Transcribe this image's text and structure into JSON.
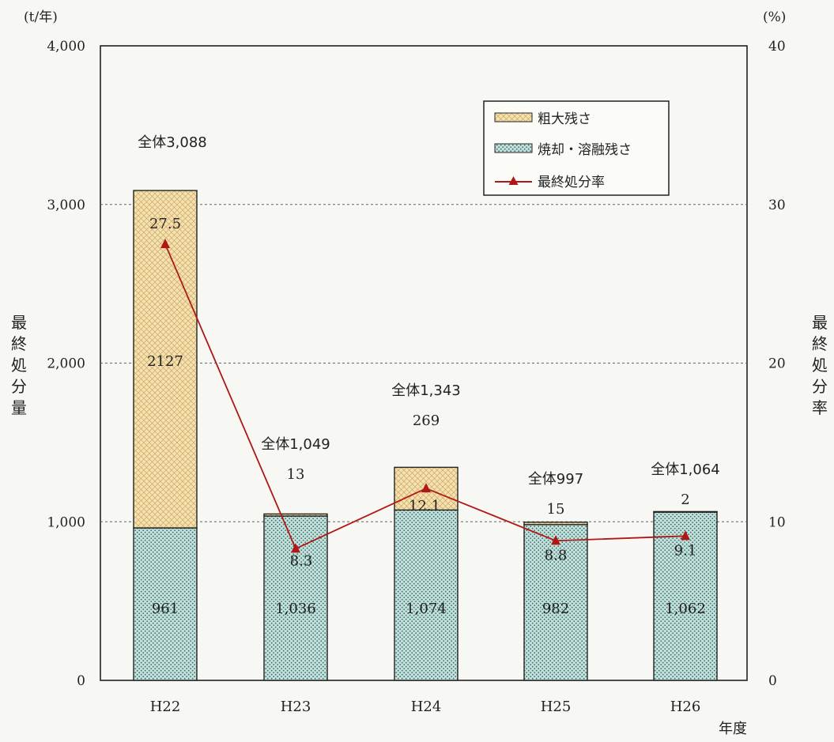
{
  "chart_data": {
    "type": "bar",
    "categories": [
      "H22",
      "H23",
      "H24",
      "H25",
      "H26"
    ],
    "series": [
      {
        "name": "焼却・溶融残さ",
        "type": "bar",
        "stack": true,
        "values": [
          961,
          1036,
          1074,
          982,
          1062
        ],
        "value_labels": [
          "961",
          "1,036",
          "1,074",
          "982",
          "1,062"
        ],
        "color": "#bfe0dc"
      },
      {
        "name": "粗大残さ",
        "type": "bar",
        "stack": true,
        "values": [
          2127,
          13,
          269,
          15,
          2
        ],
        "value_labels": [
          "2127",
          "13",
          "269",
          "15",
          "2"
        ],
        "color": "#f3dfaa"
      },
      {
        "name": "最終処分率",
        "type": "line",
        "axis": "right",
        "values": [
          27.5,
          8.3,
          12.1,
          8.8,
          9.1
        ],
        "value_labels": [
          "27.5",
          "8.3",
          "12.1",
          "8.8",
          "9.1"
        ],
        "color": "#b01818"
      }
    ],
    "totals": [
      "全体3,088",
      "全体1,049",
      "全体1,343",
      "全体997",
      "全体1,064"
    ],
    "y_left": {
      "unit": "(t/年)",
      "label": "最終処分量",
      "ylim": [
        0,
        4000
      ],
      "ticks": [
        0,
        1000,
        2000,
        3000,
        4000
      ],
      "tick_labels": [
        "0",
        "1,000",
        "2,000",
        "3,000",
        "4,000"
      ]
    },
    "y_right": {
      "unit": "(%)",
      "label": "最終処分率",
      "ylim": [
        0,
        40
      ],
      "ticks": [
        0,
        10,
        20,
        30,
        40
      ],
      "tick_labels": [
        "0",
        "10",
        "20",
        "30",
        "40"
      ]
    },
    "xlabel": "年度",
    "grid": "horizontal-dashed",
    "legend_position": "top-right"
  }
}
